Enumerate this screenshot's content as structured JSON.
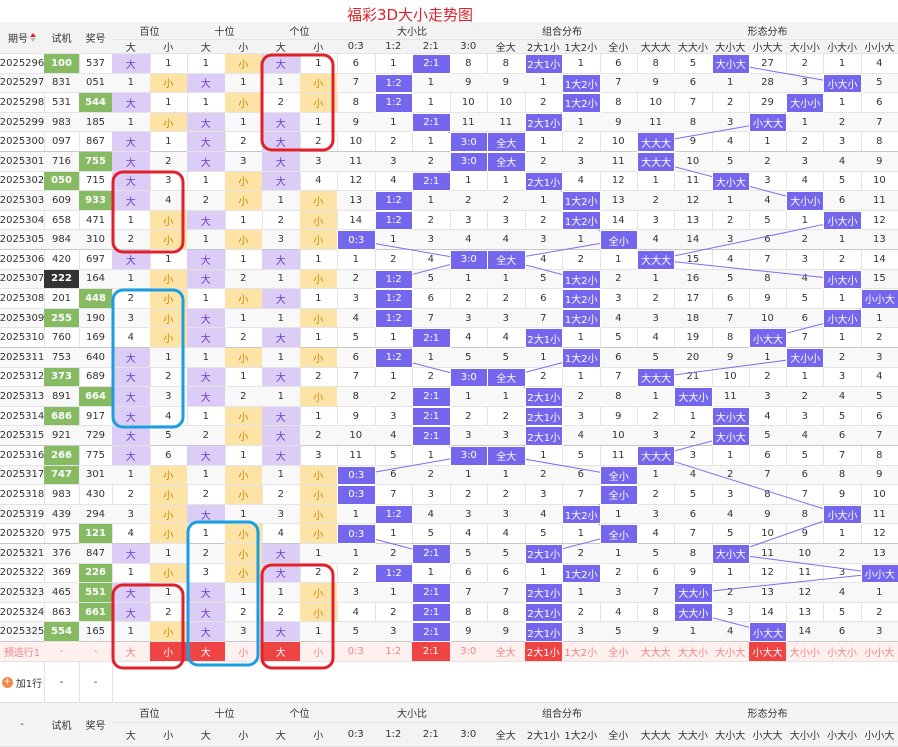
{
  "title": "福彩3D大小走势图",
  "header": {
    "columns": [
      "期号",
      "试机",
      "奖号"
    ],
    "groups": [
      "百位",
      "十位",
      "个位",
      "大小比",
      "组合分布",
      "形态分布"
    ],
    "subs": [
      "大",
      "小",
      "大",
      "小",
      "大",
      "小",
      "0:3",
      "1:2",
      "2:1",
      "3:0",
      "全大",
      "2大1小",
      "1大2小",
      "全小",
      "大大大",
      "大大小",
      "大小大",
      "小大大",
      "大小小",
      "小大小",
      "小小大"
    ]
  },
  "rows": [
    {
      "issue": "2025296",
      "test": "100",
      "draw": "537",
      "cells": [
        "大",
        1,
        1,
        "小",
        "大",
        1,
        6,
        1,
        "2:1",
        8,
        8,
        "2大1小",
        1,
        6,
        8,
        5,
        "大小大",
        27,
        2,
        1,
        4
      ]
    },
    {
      "issue": "2025297",
      "test": "831",
      "draw": "051",
      "cells": [
        1,
        "小",
        "大",
        1,
        1,
        "小",
        7,
        "1:2",
        1,
        9,
        9,
        1,
        "1大2小",
        7,
        9,
        6,
        1,
        28,
        3,
        "小大小",
        5
      ]
    },
    {
      "issue": "2025298",
      "test": "531",
      "draw": "544",
      "cells": [
        "大",
        1,
        1,
        "小",
        2,
        "小",
        8,
        "1:2",
        1,
        10,
        10,
        2,
        "1大2小",
        8,
        10,
        7,
        2,
        29,
        "大小小",
        1,
        6
      ]
    },
    {
      "issue": "2025299",
      "test": "983",
      "draw": "185",
      "cells": [
        1,
        "小",
        "大",
        1,
        "大",
        1,
        9,
        1,
        "2:1",
        11,
        11,
        "2大1小",
        1,
        9,
        11,
        8,
        3,
        "小大大",
        1,
        2,
        7
      ]
    },
    {
      "issue": "2025300",
      "test": "097",
      "draw": "867",
      "cells": [
        "大",
        1,
        "大",
        2,
        "大",
        2,
        10,
        2,
        1,
        "3:0",
        "全大",
        1,
        2,
        10,
        "大大大",
        9,
        4,
        1,
        2,
        3,
        8
      ]
    },
    {
      "issue": "2025301",
      "test": "716",
      "draw": "755",
      "cells": [
        "大",
        2,
        "大",
        3,
        "大",
        3,
        11,
        3,
        2,
        "3:0",
        "全大",
        2,
        3,
        11,
        "大大大",
        10,
        5,
        2,
        3,
        4,
        9
      ]
    },
    {
      "issue": "2025302",
      "test": "050",
      "draw": "715",
      "cells": [
        "大",
        3,
        1,
        "小",
        "大",
        4,
        12,
        4,
        "2:1",
        1,
        1,
        "2大1小",
        4,
        12,
        1,
        11,
        "大小大",
        3,
        4,
        5,
        10
      ]
    },
    {
      "issue": "2025303",
      "test": "609",
      "draw": "933",
      "cells": [
        "大",
        4,
        2,
        "小",
        1,
        "小",
        13,
        "1:2",
        1,
        2,
        2,
        1,
        "1大2小",
        13,
        2,
        12,
        1,
        4,
        "大小小",
        6,
        11
      ]
    },
    {
      "issue": "2025304",
      "test": "658",
      "draw": "471",
      "cells": [
        1,
        "小",
        "大",
        1,
        2,
        "小",
        14,
        "1:2",
        2,
        3,
        3,
        2,
        "1大2小",
        14,
        3,
        13,
        2,
        5,
        1,
        "小大小",
        12
      ]
    },
    {
      "issue": "2025305",
      "test": "984",
      "draw": "310",
      "cells": [
        2,
        "小",
        1,
        "小",
        3,
        "小",
        "0:3",
        1,
        3,
        4,
        4,
        3,
        1,
        "全小",
        4,
        14,
        3,
        6,
        2,
        1,
        13
      ]
    },
    {
      "issue": "2025306",
      "test": "420",
      "draw": "697",
      "cells": [
        "大",
        1,
        "大",
        1,
        "大",
        1,
        1,
        2,
        4,
        "3:0",
        "全大",
        4,
        2,
        1,
        "大大大",
        15,
        4,
        7,
        3,
        2,
        14
      ]
    },
    {
      "issue": "2025307",
      "test": "222",
      "draw": "164",
      "cells": [
        1,
        "小",
        "大",
        2,
        1,
        "小",
        2,
        "1:2",
        5,
        1,
        1,
        5,
        "1大2小",
        2,
        1,
        16,
        5,
        8,
        4,
        "小大小",
        15
      ]
    },
    {
      "issue": "2025308",
      "test": "201",
      "draw": "448",
      "cells": [
        2,
        "小",
        1,
        "小",
        "大",
        1,
        3,
        "1:2",
        6,
        2,
        2,
        6,
        "1大2小",
        3,
        2,
        17,
        6,
        9,
        5,
        1,
        "小小大"
      ]
    },
    {
      "issue": "2025309",
      "test": "255",
      "draw": "190",
      "cells": [
        3,
        "小",
        "大",
        1,
        1,
        "小",
        4,
        "1:2",
        7,
        3,
        3,
        7,
        "1大2小",
        4,
        3,
        18,
        7,
        10,
        6,
        "小大小",
        1
      ]
    },
    {
      "issue": "2025310",
      "test": "760",
      "draw": "169",
      "cells": [
        4,
        "小",
        "大",
        2,
        "大",
        1,
        5,
        1,
        "2:1",
        4,
        4,
        "2大1小",
        1,
        5,
        4,
        19,
        8,
        "小大大",
        7,
        1,
        2
      ]
    },
    {
      "issue": "2025311",
      "test": "753",
      "draw": "640",
      "cells": [
        "大",
        1,
        1,
        "小",
        1,
        "小",
        6,
        "1:2",
        1,
        5,
        5,
        1,
        "1大2小",
        6,
        5,
        20,
        9,
        1,
        "大小小",
        2,
        3
      ]
    },
    {
      "issue": "2025312",
      "test": "373",
      "draw": "689",
      "cells": [
        "大",
        2,
        "大",
        1,
        "大",
        2,
        7,
        1,
        2,
        "3:0",
        "全大",
        2,
        1,
        7,
        "大大大",
        21,
        10,
        2,
        1,
        3,
        4
      ]
    },
    {
      "issue": "2025313",
      "test": "891",
      "draw": "664",
      "cells": [
        "大",
        3,
        "大",
        2,
        1,
        "小",
        8,
        2,
        "2:1",
        1,
        1,
        "2大1小",
        2,
        8,
        1,
        "大大小",
        11,
        3,
        2,
        4,
        5
      ]
    },
    {
      "issue": "2025314",
      "test": "686",
      "draw": "917",
      "cells": [
        "大",
        4,
        1,
        "小",
        "大",
        1,
        9,
        3,
        "2:1",
        2,
        2,
        "2大1小",
        3,
        9,
        2,
        1,
        "大小大",
        4,
        3,
        5,
        6
      ]
    },
    {
      "issue": "2025315",
      "test": "921",
      "draw": "729",
      "cells": [
        "大",
        5,
        2,
        "小",
        "大",
        2,
        10,
        4,
        "2:1",
        3,
        3,
        "2大1小",
        4,
        10,
        3,
        2,
        "大小大",
        5,
        4,
        6,
        7
      ]
    },
    {
      "issue": "2025316",
      "test": "266",
      "draw": "775",
      "cells": [
        "大",
        6,
        "大",
        1,
        "大",
        3,
        11,
        5,
        1,
        "3:0",
        "全大",
        1,
        5,
        11,
        "大大大",
        3,
        1,
        6,
        5,
        7,
        8
      ]
    },
    {
      "issue": "2025317",
      "test": "747",
      "draw": "301",
      "cells": [
        1,
        "小",
        1,
        "小",
        1,
        "小",
        "0:3",
        6,
        2,
        1,
        1,
        2,
        6,
        "全小",
        1,
        4,
        2,
        7,
        6,
        8,
        9
      ]
    },
    {
      "issue": "2025318",
      "test": "983",
      "draw": "430",
      "cells": [
        2,
        "小",
        2,
        "小",
        2,
        "小",
        "0:3",
        7,
        3,
        2,
        2,
        3,
        7,
        "全小",
        2,
        5,
        3,
        8,
        7,
        9,
        10
      ]
    },
    {
      "issue": "2025319",
      "test": "439",
      "draw": "294",
      "cells": [
        3,
        "小",
        "大",
        1,
        3,
        "小",
        1,
        "1:2",
        4,
        3,
        3,
        4,
        "1大2小",
        1,
        3,
        6,
        4,
        9,
        8,
        "小大小",
        11
      ]
    },
    {
      "issue": "2025320",
      "test": "975",
      "draw": "121",
      "cells": [
        4,
        "小",
        1,
        "小",
        4,
        "小",
        "0:3",
        1,
        5,
        4,
        4,
        5,
        1,
        "全小",
        4,
        7,
        5,
        10,
        9,
        1,
        12
      ]
    },
    {
      "issue": "2025321",
      "test": "376",
      "draw": "847",
      "cells": [
        "大",
        1,
        2,
        "小",
        "大",
        1,
        1,
        2,
        "2:1",
        5,
        5,
        "2大1小",
        2,
        1,
        5,
        8,
        "大小大",
        11,
        10,
        2,
        13
      ]
    },
    {
      "issue": "2025322",
      "test": "369",
      "draw": "226",
      "cells": [
        1,
        "小",
        3,
        "小",
        "大",
        2,
        2,
        "1:2",
        1,
        6,
        6,
        1,
        "1大2小",
        2,
        6,
        9,
        1,
        12,
        11,
        3,
        "小小大"
      ]
    },
    {
      "issue": "2025323",
      "test": "465",
      "draw": "551",
      "cells": [
        "大",
        1,
        "大",
        1,
        1,
        "小",
        3,
        1,
        "2:1",
        7,
        7,
        "2大1小",
        1,
        3,
        7,
        "大大小",
        2,
        13,
        12,
        4,
        1
      ]
    },
    {
      "issue": "2025324",
      "test": "863",
      "draw": "661",
      "cells": [
        "大",
        2,
        "大",
        2,
        2,
        "小",
        4,
        2,
        "2:1",
        8,
        8,
        "2大1小",
        2,
        4,
        8,
        "大大小",
        3,
        14,
        13,
        5,
        2
      ]
    },
    {
      "issue": "2025325",
      "test": "554",
      "draw": "165",
      "cells": [
        1,
        "小",
        "大",
        3,
        "大",
        1,
        5,
        3,
        "2:1",
        9,
        9,
        "2大1小",
        3,
        5,
        9,
        1,
        4,
        "小大大",
        14,
        6,
        3
      ]
    }
  ],
  "preselect": {
    "label": "预选行1",
    "test": "-",
    "draw": "-",
    "cells": [
      "大",
      "小",
      "大",
      "小",
      "大",
      "小",
      "0:3",
      "1:2",
      "2:1",
      "3:0",
      "全大",
      "2大1小",
      "1大2小",
      "全小",
      "大大大",
      "大大小",
      "大小大",
      "小大大",
      "大小小",
      "小大小",
      "小小大"
    ]
  },
  "addrow": {
    "label": "加1行",
    "test": "-",
    "draw": "-"
  },
  "footer": {
    "first": "-",
    "columns": [
      "试机",
      "奖号"
    ],
    "groups": [
      "百位",
      "十位",
      "个位",
      "大小比",
      "组合分布",
      "形态分布"
    ],
    "subs": [
      "大",
      "小",
      "大",
      "小",
      "大",
      "小",
      "0:3",
      "1:2",
      "2:1",
      "3:0",
      "全大",
      "2大1小",
      "1大2小",
      "全小",
      "大大大",
      "大大小",
      "大小大",
      "小大大",
      "大小小",
      "小大小",
      "小小大"
    ]
  }
}
